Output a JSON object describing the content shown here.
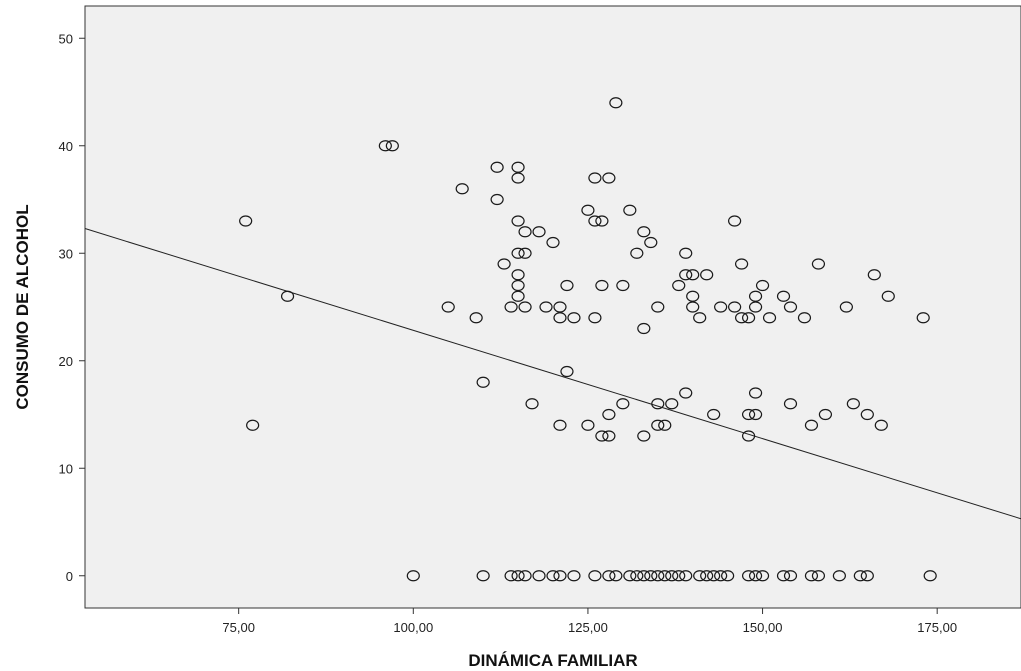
{
  "chart_data": {
    "type": "scatter",
    "title": "",
    "xlabel": "DINÁMICA FAMILIAR",
    "ylabel": "CONSUMO DE ALCOHOL",
    "xlim": [
      53,
      187
    ],
    "ylim": [
      -3,
      53
    ],
    "x_ticks": [
      75,
      100,
      125,
      150,
      175
    ],
    "x_tick_labels": [
      "75,00",
      "100,00",
      "125,00",
      "150,00",
      "175,00"
    ],
    "y_ticks": [
      0,
      10,
      20,
      30,
      40,
      50
    ],
    "y_tick_labels": [
      "0",
      "10",
      "20",
      "30",
      "40",
      "50"
    ],
    "grid": false,
    "plot_background": "#f0f0f0",
    "marker": "open-circle",
    "fit_line": {
      "type": "linear",
      "start": [
        53,
        32.3
      ],
      "end": [
        187,
        5.3
      ]
    },
    "points": [
      [
        76,
        33
      ],
      [
        77,
        14
      ],
      [
        82,
        26
      ],
      [
        96,
        40
      ],
      [
        97,
        40
      ],
      [
        100,
        0
      ],
      [
        105,
        25
      ],
      [
        107,
        36
      ],
      [
        109,
        24
      ],
      [
        110,
        18
      ],
      [
        110,
        0
      ],
      [
        112,
        38
      ],
      [
        112,
        35
      ],
      [
        113,
        29
      ],
      [
        114,
        25
      ],
      [
        114,
        0
      ],
      [
        115,
        38
      ],
      [
        115,
        37
      ],
      [
        115,
        33
      ],
      [
        115,
        30
      ],
      [
        115,
        28
      ],
      [
        115,
        27
      ],
      [
        115,
        26
      ],
      [
        115,
        0
      ],
      [
        116,
        32
      ],
      [
        116,
        30
      ],
      [
        116,
        25
      ],
      [
        116,
        0
      ],
      [
        117,
        16
      ],
      [
        118,
        32
      ],
      [
        118,
        0
      ],
      [
        119,
        25
      ],
      [
        120,
        31
      ],
      [
        120,
        0
      ],
      [
        121,
        25
      ],
      [
        121,
        24
      ],
      [
        121,
        14
      ],
      [
        121,
        0
      ],
      [
        122,
        27
      ],
      [
        122,
        19
      ],
      [
        123,
        24
      ],
      [
        123,
        0
      ],
      [
        125,
        34
      ],
      [
        125,
        14
      ],
      [
        126,
        37
      ],
      [
        126,
        33
      ],
      [
        126,
        24
      ],
      [
        126,
        0
      ],
      [
        127,
        33
      ],
      [
        127,
        27
      ],
      [
        127,
        13
      ],
      [
        128,
        37
      ],
      [
        128,
        15
      ],
      [
        128,
        13
      ],
      [
        128,
        0
      ],
      [
        129,
        44
      ],
      [
        129,
        0
      ],
      [
        130,
        27
      ],
      [
        130,
        16
      ],
      [
        131,
        34
      ],
      [
        131,
        0
      ],
      [
        132,
        30
      ],
      [
        132,
        0
      ],
      [
        133,
        32
      ],
      [
        133,
        23
      ],
      [
        133,
        13
      ],
      [
        133,
        0
      ],
      [
        134,
        31
      ],
      [
        134,
        0
      ],
      [
        135,
        25
      ],
      [
        135,
        16
      ],
      [
        135,
        14
      ],
      [
        135,
        0
      ],
      [
        136,
        14
      ],
      [
        136,
        0
      ],
      [
        137,
        16
      ],
      [
        137,
        0
      ],
      [
        138,
        27
      ],
      [
        138,
        0
      ],
      [
        139,
        30
      ],
      [
        139,
        28
      ],
      [
        139,
        17
      ],
      [
        139,
        0
      ],
      [
        140,
        28
      ],
      [
        140,
        26
      ],
      [
        140,
        25
      ],
      [
        141,
        24
      ],
      [
        141,
        0
      ],
      [
        142,
        28
      ],
      [
        142,
        0
      ],
      [
        143,
        15
      ],
      [
        143,
        0
      ],
      [
        144,
        25
      ],
      [
        144,
        0
      ],
      [
        145,
        0
      ],
      [
        146,
        33
      ],
      [
        146,
        25
      ],
      [
        147,
        29
      ],
      [
        147,
        24
      ],
      [
        148,
        24
      ],
      [
        148,
        15
      ],
      [
        148,
        13
      ],
      [
        148,
        0
      ],
      [
        149,
        26
      ],
      [
        149,
        25
      ],
      [
        149,
        17
      ],
      [
        149,
        15
      ],
      [
        149,
        0
      ],
      [
        150,
        27
      ],
      [
        150,
        0
      ],
      [
        151,
        24
      ],
      [
        153,
        26
      ],
      [
        153,
        0
      ],
      [
        154,
        25
      ],
      [
        154,
        16
      ],
      [
        154,
        0
      ],
      [
        156,
        24
      ],
      [
        157,
        14
      ],
      [
        157,
        0
      ],
      [
        158,
        29
      ],
      [
        158,
        0
      ],
      [
        159,
        15
      ],
      [
        161,
        0
      ],
      [
        162,
        25
      ],
      [
        163,
        16
      ],
      [
        164,
        0
      ],
      [
        165,
        15
      ],
      [
        165,
        0
      ],
      [
        166,
        28
      ],
      [
        167,
        14
      ],
      [
        168,
        26
      ],
      [
        173,
        24
      ],
      [
        174,
        0
      ]
    ]
  }
}
